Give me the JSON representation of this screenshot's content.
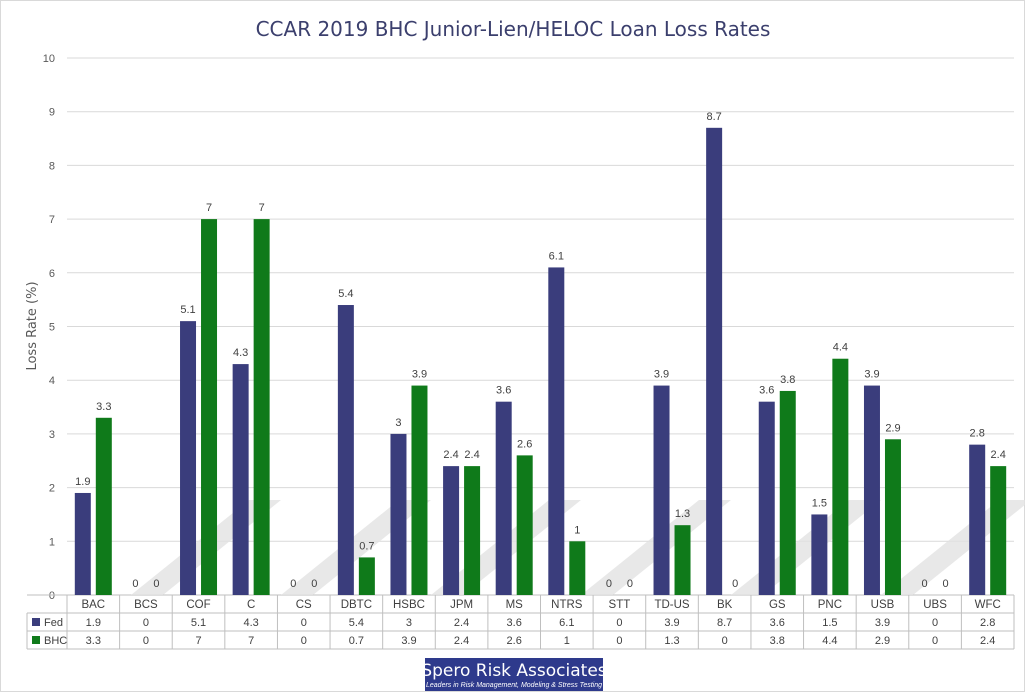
{
  "chart_data": {
    "type": "bar",
    "title": "CCAR 2019 BHC Junior-Lien/HELOC Loan Loss Rates",
    "xlabel": "",
    "ylabel": "Loss Rate (%)",
    "ylim": [
      0,
      10
    ],
    "yticks": [
      "0",
      "1",
      "2",
      "3",
      "4",
      "5",
      "6",
      "7",
      "8",
      "9",
      "10"
    ],
    "grid": true,
    "legend": "data-table",
    "categories": [
      "BAC",
      "BCS",
      "COF",
      "C",
      "CS",
      "DBTC",
      "HSBC",
      "JPM",
      "MS",
      "NTRS",
      "STT",
      "TD-US",
      "BK",
      "GS",
      "PNC",
      "USB",
      "UBS",
      "WFC"
    ],
    "series": [
      {
        "name": "Fed",
        "color": "#3a3d7c",
        "values": [
          1.9,
          0,
          5.1,
          4.3,
          0,
          5.4,
          3,
          2.4,
          3.6,
          6.1,
          0,
          3.9,
          8.7,
          3.6,
          1.5,
          3.9,
          0,
          2.8
        ],
        "labels": [
          "1.9",
          "0",
          "5.1",
          "4.3",
          "0",
          "5.4",
          "3",
          "2.4",
          "3.6",
          "6.1",
          "0",
          "3.9",
          "8.7",
          "3.6",
          "1.5",
          "3.9",
          "0",
          "2.8"
        ]
      },
      {
        "name": "BHC",
        "color": "#0f7a1a",
        "values": [
          3.3,
          0,
          7,
          7,
          0,
          0.7,
          3.9,
          2.4,
          2.6,
          1,
          0,
          1.3,
          0,
          3.8,
          4.4,
          2.9,
          0,
          2.4
        ],
        "labels": [
          "3.3",
          "0",
          "7",
          "7",
          "0",
          "0.7",
          "3.9",
          "2.4",
          "2.6",
          "1",
          "0",
          "1.3",
          "0",
          "3.8",
          "4.4",
          "2.9",
          "0",
          "2.4"
        ]
      }
    ]
  },
  "logo": {
    "name": "Spero Risk Associates",
    "tagline": "Leaders in Risk Management, Modeling & Stress Testing",
    "color": "#2e3a8c"
  }
}
